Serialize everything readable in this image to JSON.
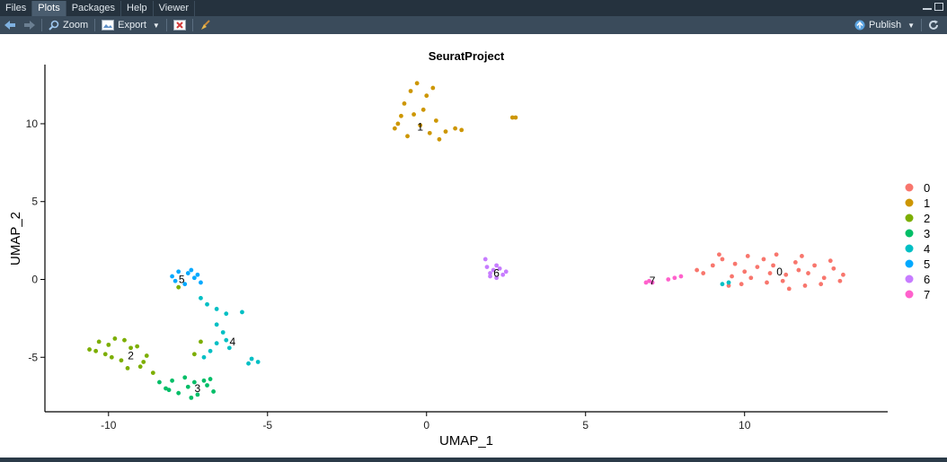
{
  "tabs": [
    {
      "label": "Files"
    },
    {
      "label": "Plots"
    },
    {
      "label": "Packages"
    },
    {
      "label": "Help"
    },
    {
      "label": "Viewer"
    }
  ],
  "active_tab": "Plots",
  "toolbar": {
    "zoom_label": "Zoom",
    "export_label": "Export",
    "publish_label": "Publish"
  },
  "icons": {
    "back": "arrow-left-icon",
    "forward": "arrow-right-icon",
    "zoom": "magnifier-icon",
    "export": "export-image-icon",
    "remove": "remove-plot-icon",
    "clear": "broom-icon",
    "publish": "publish-icon",
    "refresh": "refresh-icon"
  },
  "colors": {
    "accent": "#4a5d6f",
    "background": "#2b3a48"
  },
  "chart_data": {
    "type": "scatter",
    "title": "SeuratProject",
    "xlabel": "UMAP_1",
    "ylabel": "UMAP_2",
    "xlim": [
      -12.0,
      14.5
    ],
    "ylim": [
      -8.5,
      13.8
    ],
    "x_ticks": [
      -10,
      -5,
      0,
      5,
      10
    ],
    "y_ticks": [
      -5,
      0,
      5,
      10
    ],
    "grid": false,
    "legend_position": "right",
    "legend": [
      {
        "label": "0",
        "color": "#F8766D"
      },
      {
        "label": "1",
        "color": "#CD9600"
      },
      {
        "label": "2",
        "color": "#7CAE00"
      },
      {
        "label": "3",
        "color": "#00BE67"
      },
      {
        "label": "4",
        "color": "#00BFC4"
      },
      {
        "label": "5",
        "color": "#00A9FF"
      },
      {
        "label": "6",
        "color": "#C77CFF"
      },
      {
        "label": "7",
        "color": "#FF61CC"
      }
    ],
    "clusters": [
      {
        "name": "0",
        "color": "#F8766D",
        "label_pos": [
          11.1,
          0.5
        ],
        "points": [
          [
            8.7,
            0.4
          ],
          [
            9.0,
            0.9
          ],
          [
            9.3,
            1.3
          ],
          [
            9.6,
            0.2
          ],
          [
            9.9,
            -0.3
          ],
          [
            10.1,
            1.5
          ],
          [
            10.4,
            0.8
          ],
          [
            10.7,
            -0.2
          ],
          [
            11.0,
            1.6
          ],
          [
            11.3,
            0.3
          ],
          [
            11.6,
            1.1
          ],
          [
            11.9,
            -0.4
          ],
          [
            12.2,
            0.9
          ],
          [
            12.5,
            0.1
          ],
          [
            12.8,
            0.7
          ],
          [
            13.1,
            0.3
          ],
          [
            9.2,
            1.6
          ],
          [
            10.2,
            0.1
          ],
          [
            10.9,
            0.9
          ],
          [
            11.8,
            1.5
          ],
          [
            12.4,
            -0.3
          ],
          [
            9.5,
            -0.4
          ],
          [
            11.4,
            -0.6
          ],
          [
            10.0,
            0.5
          ],
          [
            12.0,
            0.4
          ],
          [
            13.0,
            -0.1
          ],
          [
            8.5,
            0.6
          ],
          [
            10.6,
            1.3
          ],
          [
            11.2,
            -0.1
          ],
          [
            12.7,
            1.2
          ],
          [
            9.7,
            1.0
          ],
          [
            10.8,
            0.4
          ],
          [
            11.7,
            0.6
          ]
        ]
      },
      {
        "name": "1",
        "color": "#CD9600",
        "label_pos": [
          -0.2,
          9.8
        ],
        "points": [
          [
            -1.0,
            9.7
          ],
          [
            -0.8,
            10.5
          ],
          [
            -0.7,
            11.3
          ],
          [
            -0.5,
            12.1
          ],
          [
            -0.3,
            12.6
          ],
          [
            -0.1,
            10.9
          ],
          [
            0.1,
            9.4
          ],
          [
            0.3,
            10.2
          ],
          [
            0.6,
            9.5
          ],
          [
            0.9,
            9.7
          ],
          [
            1.1,
            9.6
          ],
          [
            -0.6,
            9.2
          ],
          [
            -0.2,
            9.9
          ],
          [
            0.0,
            11.8
          ],
          [
            0.4,
            9.0
          ],
          [
            -0.9,
            10.0
          ],
          [
            0.2,
            12.3
          ],
          [
            -0.4,
            10.6
          ],
          [
            2.7,
            10.4
          ],
          [
            2.8,
            10.4
          ]
        ]
      },
      {
        "name": "2",
        "color": "#7CAE00",
        "label_pos": [
          -9.3,
          -4.9
        ],
        "points": [
          [
            -10.6,
            -4.5
          ],
          [
            -10.3,
            -4.0
          ],
          [
            -10.1,
            -4.8
          ],
          [
            -9.8,
            -3.8
          ],
          [
            -9.6,
            -5.2
          ],
          [
            -9.3,
            -4.4
          ],
          [
            -9.0,
            -5.6
          ],
          [
            -8.8,
            -4.9
          ],
          [
            -8.6,
            -6.0
          ],
          [
            -10.4,
            -4.6
          ],
          [
            -9.9,
            -5.0
          ],
          [
            -9.5,
            -3.9
          ],
          [
            -9.1,
            -4.3
          ],
          [
            -8.9,
            -5.3
          ],
          [
            -10.0,
            -4.2
          ],
          [
            -9.4,
            -5.7
          ],
          [
            -7.3,
            -4.8
          ],
          [
            -7.1,
            -4.0
          ],
          [
            -7.8,
            -0.5
          ]
        ]
      },
      {
        "name": "3",
        "color": "#00BE67",
        "label_pos": [
          -7.2,
          -7.0
        ],
        "points": [
          [
            -8.4,
            -6.6
          ],
          [
            -8.1,
            -7.1
          ],
          [
            -7.8,
            -7.3
          ],
          [
            -7.5,
            -6.9
          ],
          [
            -7.2,
            -7.4
          ],
          [
            -6.9,
            -6.8
          ],
          [
            -6.7,
            -7.2
          ],
          [
            -8.0,
            -6.5
          ],
          [
            -7.6,
            -6.3
          ],
          [
            -7.0,
            -6.5
          ],
          [
            -7.4,
            -7.6
          ],
          [
            -6.8,
            -6.4
          ],
          [
            -8.2,
            -7.0
          ],
          [
            -7.3,
            -6.6
          ]
        ]
      },
      {
        "name": "4",
        "color": "#00BFC4",
        "label_pos": [
          -6.1,
          -4.0
        ],
        "points": [
          [
            -7.1,
            -1.2
          ],
          [
            -6.9,
            -1.6
          ],
          [
            -6.6,
            -1.9
          ],
          [
            -6.3,
            -2.2
          ],
          [
            -6.6,
            -2.9
          ],
          [
            -6.4,
            -3.4
          ],
          [
            -6.6,
            -4.1
          ],
          [
            -6.8,
            -4.6
          ],
          [
            -6.3,
            -3.9
          ],
          [
            -5.8,
            -2.1
          ],
          [
            -5.5,
            -5.1
          ],
          [
            -5.3,
            -5.3
          ],
          [
            -5.6,
            -5.4
          ],
          [
            -7.0,
            -5.0
          ],
          [
            -6.2,
            -4.4
          ],
          [
            9.3,
            -0.3
          ],
          [
            9.5,
            -0.2
          ]
        ]
      },
      {
        "name": "5",
        "color": "#00A9FF",
        "label_pos": [
          -7.7,
          0.0
        ],
        "points": [
          [
            -8.0,
            0.2
          ],
          [
            -7.8,
            0.5
          ],
          [
            -7.5,
            0.4
          ],
          [
            -7.3,
            0.1
          ],
          [
            -7.1,
            -0.2
          ],
          [
            -7.6,
            -0.3
          ],
          [
            -7.9,
            -0.1
          ],
          [
            -7.4,
            0.6
          ],
          [
            -7.2,
            0.3
          ]
        ]
      },
      {
        "name": "6",
        "color": "#C77CFF",
        "label_pos": [
          2.2,
          0.4
        ],
        "points": [
          [
            1.9,
            0.8
          ],
          [
            2.0,
            0.4
          ],
          [
            2.2,
            0.1
          ],
          [
            2.4,
            0.3
          ],
          [
            2.1,
            0.6
          ],
          [
            2.3,
            0.7
          ],
          [
            2.5,
            0.5
          ],
          [
            2.0,
            0.2
          ],
          [
            2.2,
            0.9
          ],
          [
            1.85,
            1.3
          ]
        ]
      },
      {
        "name": "7",
        "color": "#FF61CC",
        "label_pos": [
          7.1,
          -0.1
        ],
        "points": [
          [
            6.9,
            -0.2
          ],
          [
            7.0,
            -0.1
          ],
          [
            7.1,
            -0.2
          ],
          [
            7.8,
            0.1
          ],
          [
            8.0,
            0.2
          ],
          [
            7.6,
            0.0
          ]
        ]
      }
    ]
  }
}
